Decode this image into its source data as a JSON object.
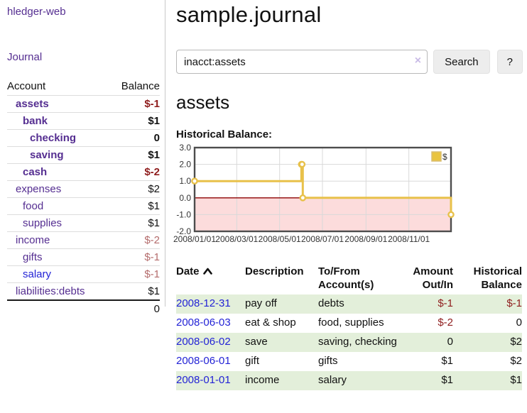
{
  "app": {
    "title": "hledger-web"
  },
  "sidebar": {
    "nav_journal": "Journal",
    "columns": {
      "account": "Account",
      "balance": "Balance"
    },
    "accounts": [
      {
        "name": "assets",
        "depth": 1,
        "balance": "$-1",
        "bold": true,
        "neg": "strong",
        "link": "purple"
      },
      {
        "name": "bank",
        "depth": 2,
        "balance": "$1",
        "bold": true,
        "neg": "none",
        "link": "purple"
      },
      {
        "name": "checking",
        "depth": 3,
        "balance": "0",
        "bold": true,
        "neg": "none",
        "link": "purple"
      },
      {
        "name": "saving",
        "depth": 3,
        "balance": "$1",
        "bold": true,
        "neg": "none",
        "link": "purple"
      },
      {
        "name": "cash",
        "depth": 2,
        "balance": "$-2",
        "bold": true,
        "neg": "strong",
        "link": "purple"
      },
      {
        "name": "expenses",
        "depth": 1,
        "balance": "$2",
        "bold": false,
        "neg": "none",
        "link": "purple"
      },
      {
        "name": "food",
        "depth": 2,
        "balance": "$1",
        "bold": false,
        "neg": "none",
        "link": "purple"
      },
      {
        "name": "supplies",
        "depth": 2,
        "balance": "$1",
        "bold": false,
        "neg": "none",
        "link": "purple"
      },
      {
        "name": "income",
        "depth": 1,
        "balance": "$-2",
        "bold": false,
        "neg": "soft",
        "link": "purple"
      },
      {
        "name": "gifts",
        "depth": 2,
        "balance": "$-1",
        "bold": false,
        "neg": "soft",
        "link": "purple"
      },
      {
        "name": "salary",
        "depth": 2,
        "balance": "$-1",
        "bold": false,
        "neg": "soft",
        "link": "blue"
      },
      {
        "name": "liabilities:debts",
        "depth": 1,
        "balance": "$1",
        "bold": false,
        "neg": "none",
        "link": "purple"
      }
    ],
    "total": "0"
  },
  "header": {
    "title": "sample.journal"
  },
  "search": {
    "query": "inacct:assets",
    "clear_icon": "×",
    "button": "Search",
    "help_button": "?"
  },
  "account_page": {
    "heading": "assets",
    "chart_title": "Historical Balance:"
  },
  "chart_data": {
    "type": "line",
    "step": true,
    "title": "Historical Balance",
    "legend": "$",
    "x_start": "2008-01-01",
    "x_end": "2008-12-31",
    "ylim": [
      -2,
      3
    ],
    "y_ticks": [
      "3.0",
      "2.0",
      "1.0",
      "0.0",
      "-1.0",
      "-2.0"
    ],
    "x_ticks": [
      {
        "label": "2008/01/01",
        "date": "2008-01-01"
      },
      {
        "label": "2008/03/01",
        "date": "2008-03-01"
      },
      {
        "label": "2008/05/01",
        "date": "2008-05-01"
      },
      {
        "label": "2008/07/01",
        "date": "2008-07-01"
      },
      {
        "label": "2008/09/01",
        "date": "2008-09-01"
      },
      {
        "label": "2008/11/01",
        "date": "2008-11-01"
      }
    ],
    "series": [
      {
        "name": "$",
        "color": "#e8c14a",
        "points": [
          {
            "date": "2008-01-01",
            "value": 1
          },
          {
            "date": "2008-06-01",
            "value": 2
          },
          {
            "date": "2008-06-02",
            "value": 2
          },
          {
            "date": "2008-06-03",
            "value": 0
          },
          {
            "date": "2008-12-31",
            "value": -1
          }
        ]
      }
    ],
    "colors": {
      "grid": "#d9d9d9",
      "plot_border": "#4d4d4d",
      "negative_fill": "#fcdcdc",
      "zero_line": "#8b0000",
      "marker_fill": "#ffffff",
      "legend_swatch": "#e9c440",
      "legend_swatch_border": "#d9bd72"
    }
  },
  "register": {
    "columns": [
      {
        "lines": [
          "Date"
        ],
        "align": "left",
        "sortable": true
      },
      {
        "lines": [
          "Description"
        ],
        "align": "left",
        "sortable": false
      },
      {
        "lines": [
          "To/From",
          "Account(s)"
        ],
        "align": "left",
        "sortable": false
      },
      {
        "lines": [
          "Amount",
          "Out/In"
        ],
        "align": "right",
        "sortable": false
      },
      {
        "lines": [
          "Historical",
          "Balance"
        ],
        "align": "right",
        "sortable": false
      }
    ],
    "rows": [
      {
        "date": "2008-12-31",
        "description": "pay off",
        "accounts": "debts",
        "amount": "$-1",
        "balance": "$-1"
      },
      {
        "date": "2008-06-03",
        "description": "eat & shop",
        "accounts": "food, supplies",
        "amount": "$-2",
        "balance": "0"
      },
      {
        "date": "2008-06-02",
        "description": "save",
        "accounts": "saving, checking",
        "amount": "0",
        "balance": "$2"
      },
      {
        "date": "2008-06-01",
        "description": "gift",
        "accounts": "gifts",
        "amount": "$1",
        "balance": "$2"
      },
      {
        "date": "2008-01-01",
        "description": "income",
        "accounts": "salary",
        "amount": "$1",
        "balance": "$1"
      }
    ]
  }
}
